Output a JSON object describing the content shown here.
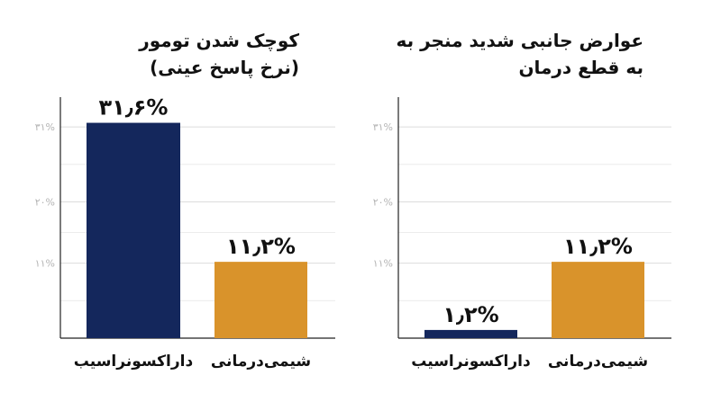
{
  "colors": {
    "daraxonrasib": "#14275c",
    "chemo": "#d9932b",
    "grid": "#dcdcdc",
    "axis": "#222222",
    "tick_text": "#b3b3b3"
  },
  "chart_data": [
    {
      "type": "bar",
      "title": "کوچک شدن تومور",
      "subtitle": "(نرخ پاسخ عینی)",
      "categories": [
        "داراکسونراسیب",
        "شیمی‌درمانی"
      ],
      "values": [
        31.6,
        11.2
      ],
      "value_labels": [
        "۳۱٫۶%",
        "۱۱٫۲%"
      ],
      "yticks": [
        11,
        20,
        31
      ],
      "ytick_labels": [
        "۱۱%",
        "۲۰%",
        "۳۱%"
      ],
      "ylim": [
        0,
        36
      ],
      "grid": true
    },
    {
      "type": "bar",
      "title": "عوارض جانبی شدید منجر به",
      "subtitle": "به قطع درمان",
      "categories": [
        "داراکسونراسیب",
        "شیمی‌درمانی"
      ],
      "values": [
        1.2,
        11.2
      ],
      "value_labels": [
        "۱٫۲%",
        "۱۱٫۲%"
      ],
      "yticks": [
        11,
        20,
        31
      ],
      "ytick_labels": [
        "۱۱%",
        "۲۰%",
        "۳۱%"
      ],
      "ylim": [
        0,
        36
      ],
      "grid": true
    }
  ]
}
